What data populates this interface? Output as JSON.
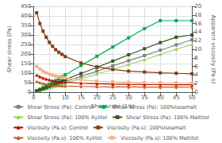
{
  "chart_data": {
    "type": "line",
    "xlabel": "Shear rate (1/s)",
    "ylabel": "Shear stress (Pa)",
    "y2label": "Apparent viscosity (Pa.s)",
    "x": [
      1,
      2,
      3,
      4,
      5,
      6,
      7,
      8,
      9,
      10,
      15,
      20,
      25,
      30,
      35,
      40,
      45,
      50
    ],
    "xlim": [
      0,
      50
    ],
    "xticks": [
      0,
      5,
      10,
      15,
      20,
      25,
      30,
      35,
      40,
      45,
      50
    ],
    "ylim": [
      0,
      450
    ],
    "yticks": [
      0,
      50,
      100,
      150,
      200,
      250,
      300,
      350,
      400,
      450
    ],
    "y2lim": [
      0,
      20
    ],
    "y2ticks": [
      0,
      2,
      4,
      6,
      8,
      10,
      12,
      14,
      16,
      18,
      20
    ],
    "grid": true,
    "legend": "bottom",
    "series": [
      {
        "name": "Shear Stress (Pa): Control",
        "color": "#808080",
        "marker": "square",
        "line_style": "solid",
        "values": [
          5,
          10,
          15,
          20,
          26,
          32,
          38,
          44,
          50,
          56,
          82,
          110,
          138,
          165,
          192,
          220,
          248,
          275
        ]
      },
      {
        "name": "Shear Stress (Pa): 100%Isoamalt",
        "color": "#00b050",
        "marker": "square",
        "line_style": "solid",
        "values": [
          8,
          16,
          24,
          33,
          42,
          51,
          61,
          71,
          81,
          91,
          140,
          188,
          237,
          285,
          333,
          375,
          375,
          375
        ]
      },
      {
        "name": "Shear Stress (Pa): 100% Xylitol",
        "color": "#92d050",
        "marker": "triangle",
        "line_style": "solid",
        "values": [
          4,
          8,
          13,
          17,
          22,
          27,
          32,
          37,
          42,
          47,
          70,
          95,
          120,
          145,
          170,
          198,
          225,
          250
        ]
      },
      {
        "name": "Shear Stress (Pa): 100% Maltitol",
        "color": "#375623",
        "marker": "square",
        "line_style": "solid",
        "values": [
          6,
          12,
          18,
          24,
          31,
          38,
          45,
          52,
          59,
          66,
          98,
          130,
          163,
          196,
          228,
          260,
          288,
          300
        ]
      },
      {
        "name": "Viscosity (Pa.s): Control",
        "color": "#c00000",
        "marker": "triangle",
        "line_style": "solid",
        "axis": "y2",
        "values": [
          4.0,
          3.6,
          3.3,
          3.05,
          2.85,
          2.7,
          2.58,
          2.48,
          2.4,
          2.33,
          2.08,
          1.95,
          1.87,
          1.82,
          1.78,
          1.76,
          1.74,
          1.73
        ]
      },
      {
        "name": "Viscosity (Pa.s): 100%Isoamalt",
        "color": "#843c0c",
        "marker": "square",
        "line_style": "solid",
        "axis": "y2",
        "values": [
          18.5,
          16.0,
          14.2,
          12.8,
          11.6,
          10.7,
          9.9,
          9.3,
          8.8,
          8.3,
          6.8,
          5.9,
          5.3,
          4.9,
          4.7,
          4.5,
          4.4,
          4.3
        ]
      },
      {
        "name": "Viscosity (Pa.s): 100% Xylitol",
        "color": "#c55a11",
        "marker": "triangle",
        "line_style": "solid",
        "axis": "y2",
        "values": [
          2.5,
          2.2,
          2.0,
          1.85,
          1.72,
          1.65,
          1.58,
          1.52,
          1.48,
          1.45,
          1.34,
          1.28,
          1.24,
          1.21,
          1.19,
          1.18,
          1.17,
          1.16
        ]
      },
      {
        "name": "Viscosity (Pa.s): 100% Maltitol",
        "color": "#f4b183",
        "marker": "square",
        "line_style": "solid",
        "axis": "y2",
        "values": [
          6.0,
          5.4,
          4.9,
          4.5,
          4.2,
          3.95,
          3.75,
          3.58,
          3.44,
          3.32,
          2.85,
          2.58,
          2.41,
          2.3,
          2.22,
          2.17,
          2.13,
          2.1
        ]
      }
    ]
  }
}
